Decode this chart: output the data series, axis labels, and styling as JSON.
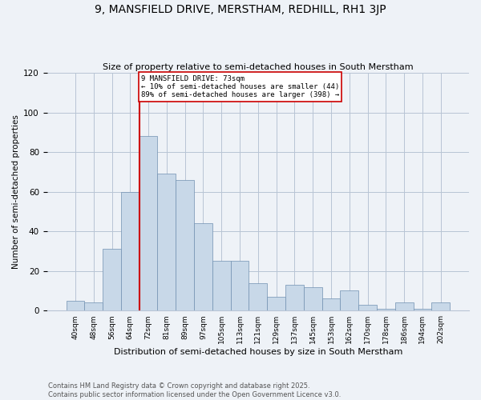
{
  "title": "9, MANSFIELD DRIVE, MERSTHAM, REDHILL, RH1 3JP",
  "subtitle": "Size of property relative to semi-detached houses in South Merstham",
  "xlabel": "Distribution of semi-detached houses by size in South Merstham",
  "ylabel": "Number of semi-detached properties",
  "footnote": "Contains HM Land Registry data © Crown copyright and database right 2025.\nContains public sector information licensed under the Open Government Licence v3.0.",
  "bin_labels": [
    "40sqm",
    "48sqm",
    "56sqm",
    "64sqm",
    "72sqm",
    "81sqm",
    "89sqm",
    "97sqm",
    "105sqm",
    "113sqm",
    "121sqm",
    "129sqm",
    "137sqm",
    "145sqm",
    "153sqm",
    "162sqm",
    "170sqm",
    "178sqm",
    "186sqm",
    "194sqm",
    "202sqm"
  ],
  "bar_heights": [
    5,
    4,
    31,
    60,
    88,
    69,
    66,
    44,
    25,
    25,
    14,
    7,
    13,
    12,
    6,
    10,
    3,
    1,
    4,
    1,
    4
  ],
  "bar_color": "#c8d8e8",
  "bar_edge_color": "#7090b0",
  "annotation_title": "9 MANSFIELD DRIVE: 73sqm",
  "annotation_line1": "← 10% of semi-detached houses are smaller (44)",
  "annotation_line2": "89% of semi-detached houses are larger (398) →",
  "annotation_box_color": "#ffffff",
  "annotation_border_color": "#cc0000",
  "vline_color": "#cc0000",
  "background_color": "#eef2f7",
  "ylim": [
    0,
    120
  ],
  "yticks": [
    0,
    20,
    40,
    60,
    80,
    100,
    120
  ],
  "vline_bar_index": 4,
  "figsize": [
    6.0,
    5.0
  ],
  "dpi": 100
}
